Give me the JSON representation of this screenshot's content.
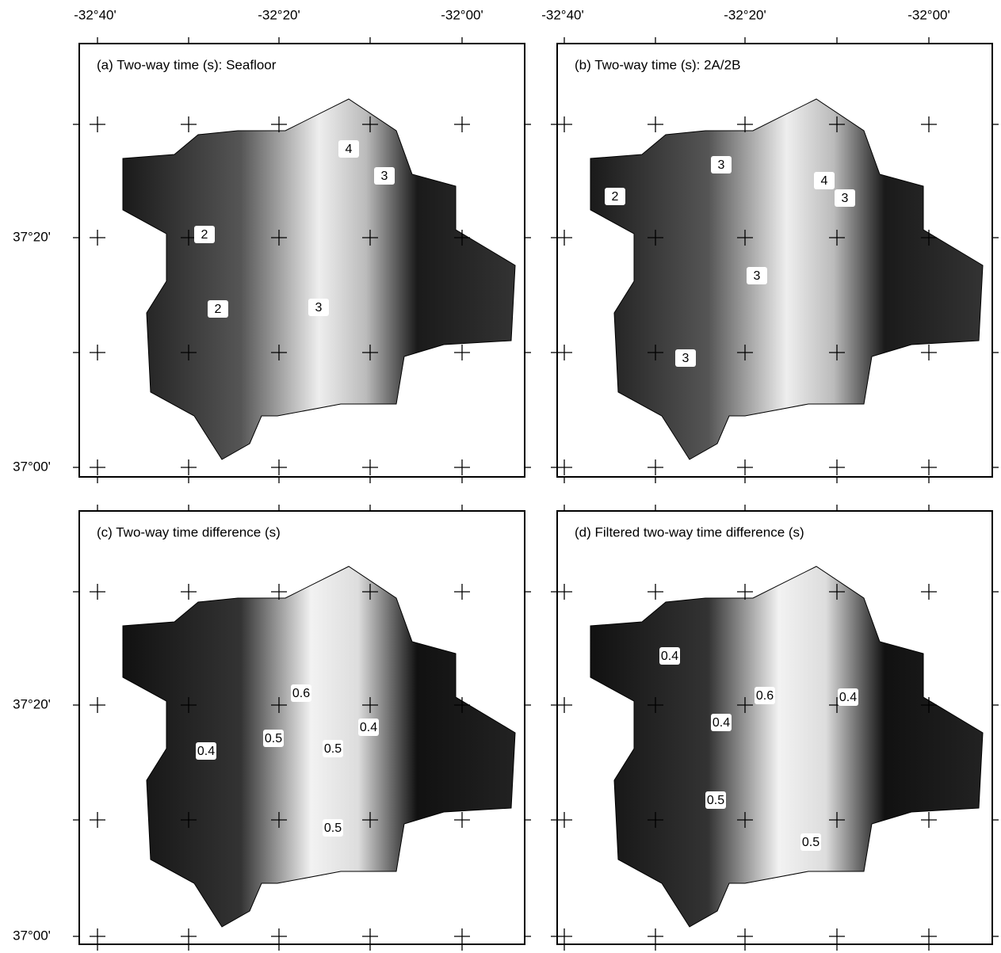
{
  "x_axis_labels": [
    "-32°40'",
    "-32°20'",
    "-32°00'"
  ],
  "y_axis_labels": [
    "37°20'",
    "37°00'"
  ],
  "panels": [
    {
      "title": "(a) Two-way time (s): Seafloor",
      "contour_labels": [
        "4",
        "3",
        "2",
        "2",
        "3"
      ]
    },
    {
      "title": "(b) Two-way time (s): 2A/2B",
      "contour_labels": [
        "3",
        "2",
        "4",
        "3",
        "3",
        "3"
      ]
    },
    {
      "title": "(c) Two-way time difference (s)",
      "contour_labels": [
        "0.6",
        "0.4",
        "0.5",
        "0.5",
        "0.4",
        "0.5"
      ]
    },
    {
      "title": "(d) Filtered two-way time difference (s)",
      "contour_labels": [
        "0.4",
        "0.6",
        "0.4",
        "0.4",
        "0.5",
        "0.5"
      ]
    }
  ]
}
